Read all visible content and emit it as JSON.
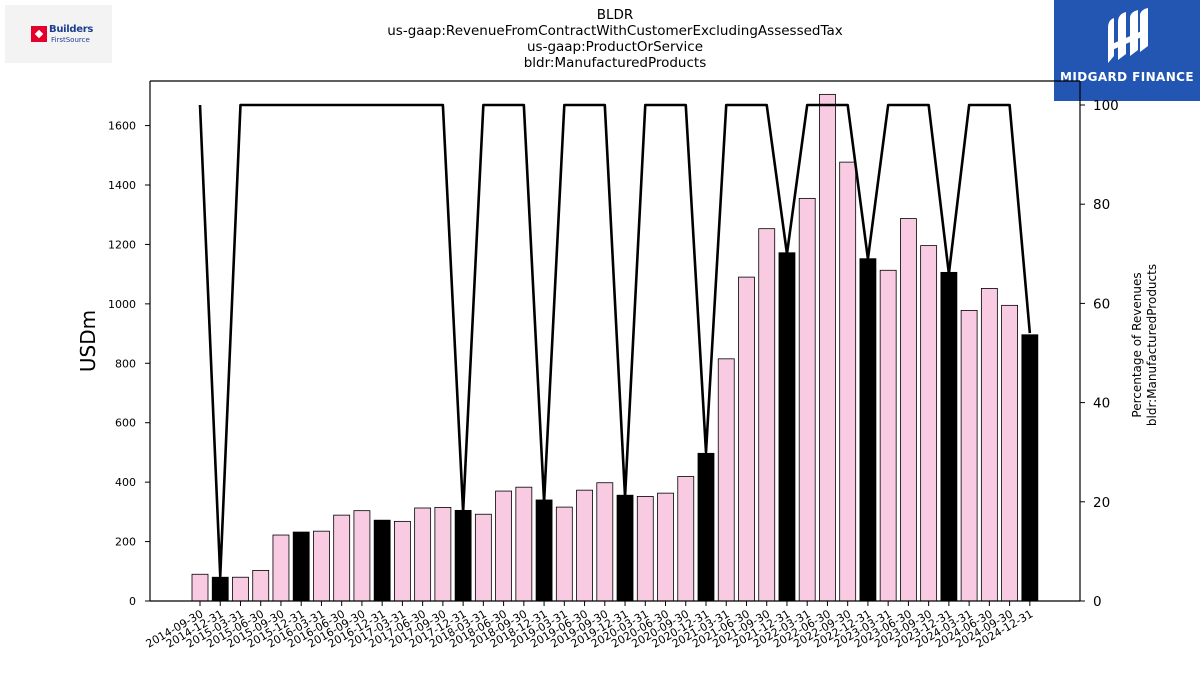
{
  "header": {
    "title_lines": [
      "BLDR",
      "us-gaap:RevenueFromContractWithCustomerExcludingAssessedTax",
      "us-gaap:ProductOrService",
      "bldr:ManufacturedProducts"
    ]
  },
  "logos": {
    "company": {
      "line1": "Builders",
      "line2": "FirstSource"
    },
    "brand": {
      "text": "MIDGARD FINANCE",
      "color": "#2356b3"
    }
  },
  "chart_data": {
    "type": "bar",
    "ylabel": "USDm",
    "y2label_lines": [
      "Percentage of Revenues",
      "bldr:ManufacturedProducts"
    ],
    "ylim": [
      0,
      1750
    ],
    "y2lim": [
      0,
      100
    ],
    "yticks": [
      0,
      200,
      400,
      600,
      800,
      1000,
      1200,
      1400,
      1600
    ],
    "y2ticks": [
      0,
      20,
      40,
      60,
      80,
      100
    ],
    "grid": false,
    "colors": {
      "bar": "#f9cbe3",
      "bar_highlight": "#000000",
      "line": "#000000"
    },
    "categories": [
      "2014-09-30",
      "2014-12-31",
      "2015-03-31",
      "2015-06-30",
      "2015-09-30",
      "2015-12-31",
      "2016-03-31",
      "2016-06-30",
      "2016-09-30",
      "2016-12-31",
      "2017-03-31",
      "2017-06-30",
      "2017-09-30",
      "2017-12-31",
      "2018-03-31",
      "2018-06-30",
      "2018-09-30",
      "2018-12-31",
      "2019-03-31",
      "2019-06-30",
      "2019-09-30",
      "2019-12-31",
      "2020-03-31",
      "2020-06-30",
      "2020-09-30",
      "2020-12-31",
      "2021-03-31",
      "2021-06-30",
      "2021-09-30",
      "2021-12-31",
      "2022-03-31",
      "2022-06-30",
      "2022-09-30",
      "2022-12-31",
      "2023-03-31",
      "2023-06-30",
      "2023-09-30",
      "2023-12-31",
      "2024-03-31",
      "2024-06-30",
      "2024-09-30",
      "2024-12-31"
    ],
    "series": [
      {
        "type": "bar",
        "values": [
          90,
          80,
          80,
          103,
          222,
          232,
          235,
          289,
          304,
          272,
          268,
          313,
          315,
          305,
          292,
          370,
          383,
          340,
          316,
          373,
          398,
          356,
          352,
          363,
          419,
          497,
          815,
          1090,
          1253,
          1172,
          1355,
          1705,
          1477,
          1152,
          1113,
          1287,
          1196,
          1106,
          978,
          1052,
          995,
          896
        ],
        "highlight": [
          false,
          true,
          false,
          false,
          false,
          true,
          false,
          false,
          false,
          true,
          false,
          false,
          false,
          true,
          false,
          false,
          false,
          true,
          false,
          false,
          false,
          true,
          false,
          false,
          false,
          true,
          false,
          false,
          false,
          true,
          false,
          false,
          false,
          true,
          false,
          false,
          false,
          true,
          false,
          false,
          false,
          true
        ]
      },
      {
        "type": "line",
        "axis": "right",
        "values": [
          100,
          5,
          100,
          100,
          100,
          100,
          100,
          100,
          100,
          100,
          100,
          100,
          100,
          18,
          100,
          100,
          100,
          20,
          100,
          100,
          100,
          21,
          100,
          100,
          100,
          30,
          100,
          100,
          100,
          70,
          100,
          100,
          100,
          69,
          100,
          100,
          100,
          66,
          100,
          100,
          100,
          54
        ]
      }
    ]
  }
}
